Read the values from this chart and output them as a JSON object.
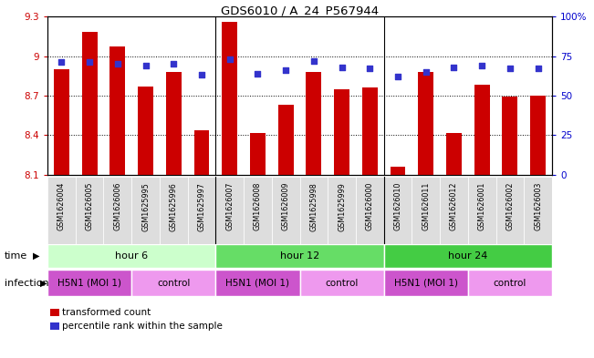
{
  "title": "GDS6010 / A_24_P567944",
  "samples": [
    "GSM1626004",
    "GSM1626005",
    "GSM1626006",
    "GSM1625995",
    "GSM1625996",
    "GSM1625997",
    "GSM1626007",
    "GSM1626008",
    "GSM1626009",
    "GSM1625998",
    "GSM1625999",
    "GSM1626000",
    "GSM1626010",
    "GSM1626011",
    "GSM1626012",
    "GSM1626001",
    "GSM1626002",
    "GSM1626003"
  ],
  "bar_values": [
    8.9,
    9.18,
    9.07,
    8.77,
    8.88,
    8.44,
    9.26,
    8.42,
    8.63,
    8.88,
    8.75,
    8.76,
    8.16,
    8.88,
    8.42,
    8.78,
    8.69,
    8.7
  ],
  "percentile_values": [
    71,
    71,
    70,
    69,
    70,
    63,
    73,
    64,
    66,
    72,
    68,
    67,
    62,
    65,
    68,
    69,
    67,
    67
  ],
  "ylim_left": [
    8.1,
    9.3
  ],
  "ylim_right": [
    0,
    100
  ],
  "yticks_left": [
    8.1,
    8.4,
    8.7,
    9.0,
    9.3
  ],
  "yticks_right": [
    0,
    25,
    50,
    75,
    100
  ],
  "ytick_labels_left": [
    "8.1",
    "8.4",
    "8.7",
    "9",
    "9.3"
  ],
  "ytick_labels_right": [
    "0",
    "25",
    "50",
    "75",
    "100%"
  ],
  "bar_color": "#cc0000",
  "percentile_color": "#3333cc",
  "bar_bottom": 8.1,
  "time_groups": [
    {
      "label": "hour 6",
      "start": 0,
      "end": 6,
      "color": "#ccffcc"
    },
    {
      "label": "hour 12",
      "start": 6,
      "end": 12,
      "color": "#66dd66"
    },
    {
      "label": "hour 24",
      "start": 12,
      "end": 18,
      "color": "#44cc44"
    }
  ],
  "infection_groups": [
    {
      "label": "H5N1 (MOI 1)",
      "start": 0,
      "end": 3,
      "color": "#cc55cc"
    },
    {
      "label": "control",
      "start": 3,
      "end": 6,
      "color": "#ee99ee"
    },
    {
      "label": "H5N1 (MOI 1)",
      "start": 6,
      "end": 9,
      "color": "#cc55cc"
    },
    {
      "label": "control",
      "start": 9,
      "end": 12,
      "color": "#ee99ee"
    },
    {
      "label": "H5N1 (MOI 1)",
      "start": 12,
      "end": 15,
      "color": "#cc55cc"
    },
    {
      "label": "control",
      "start": 15,
      "end": 18,
      "color": "#ee99ee"
    }
  ],
  "background_color": "#ffffff",
  "axis_color_left": "#cc0000",
  "axis_color_right": "#0000cc",
  "bar_width": 0.55,
  "time_row_label": "time",
  "infection_row_label": "infection",
  "grid_dotted_color": "#333333"
}
